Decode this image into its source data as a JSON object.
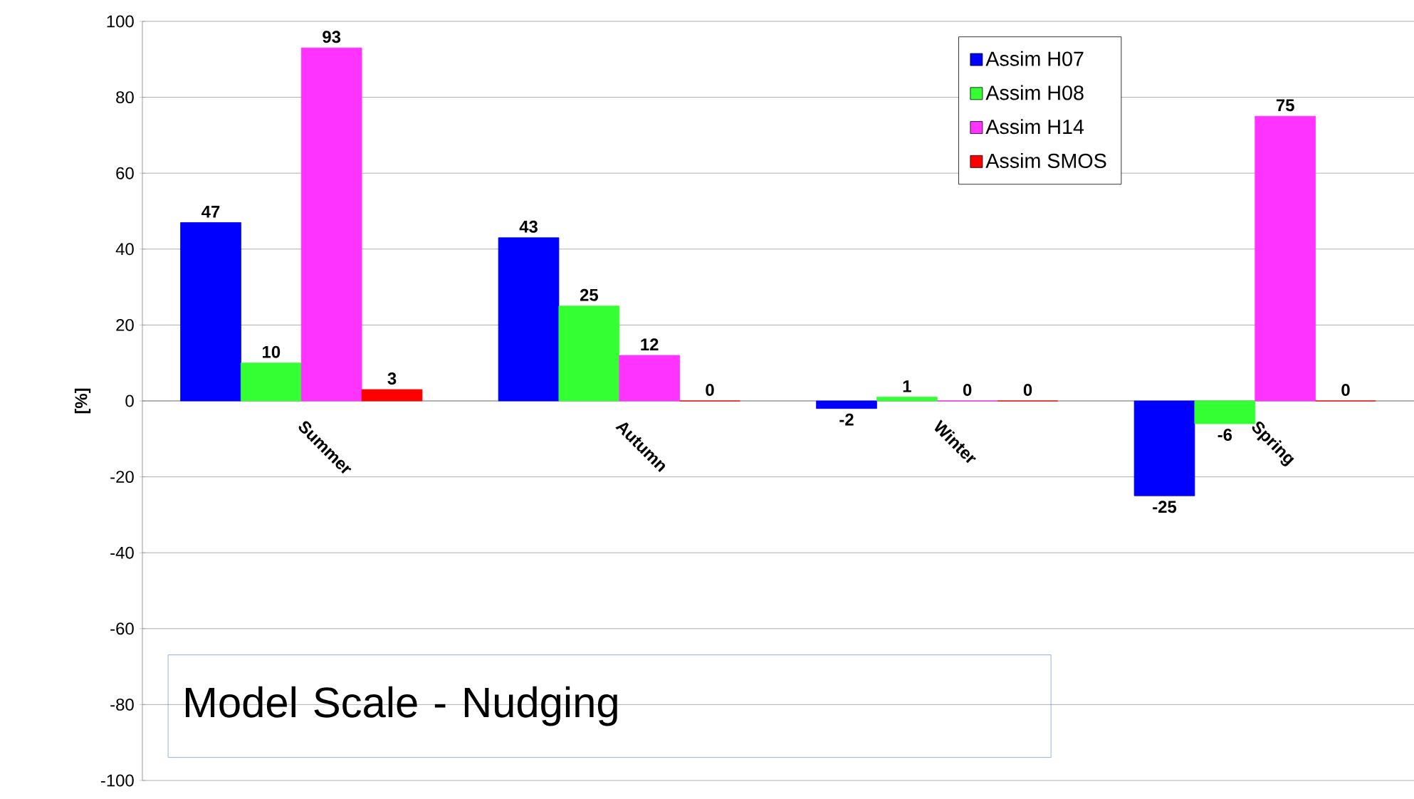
{
  "chart_data": {
    "type": "bar",
    "ylabel": "[%]",
    "categories": [
      "Summer",
      "Autumn",
      "Winter",
      "Spring"
    ],
    "series": [
      {
        "name": "Assim H07",
        "color": "#0000ff",
        "values": [
          47,
          43,
          -2,
          -25
        ]
      },
      {
        "name": "Assim H08",
        "color": "#33ff33",
        "values": [
          10,
          25,
          1,
          -6
        ]
      },
      {
        "name": "Assim H14",
        "color": "#ff33ff",
        "values": [
          93,
          12,
          0,
          75
        ]
      },
      {
        "name": "Assim SMOS",
        "color": "#ff0000",
        "values": [
          3,
          0,
          0,
          0
        ]
      }
    ],
    "ylim": [
      -100,
      100
    ],
    "yticks": [
      -100,
      -80,
      -60,
      -40,
      -20,
      0,
      20,
      40,
      60,
      80,
      100
    ],
    "grid": "y",
    "legend": "top right",
    "data_labels": true,
    "annotations": [
      "Model Scale - Nudging"
    ]
  }
}
